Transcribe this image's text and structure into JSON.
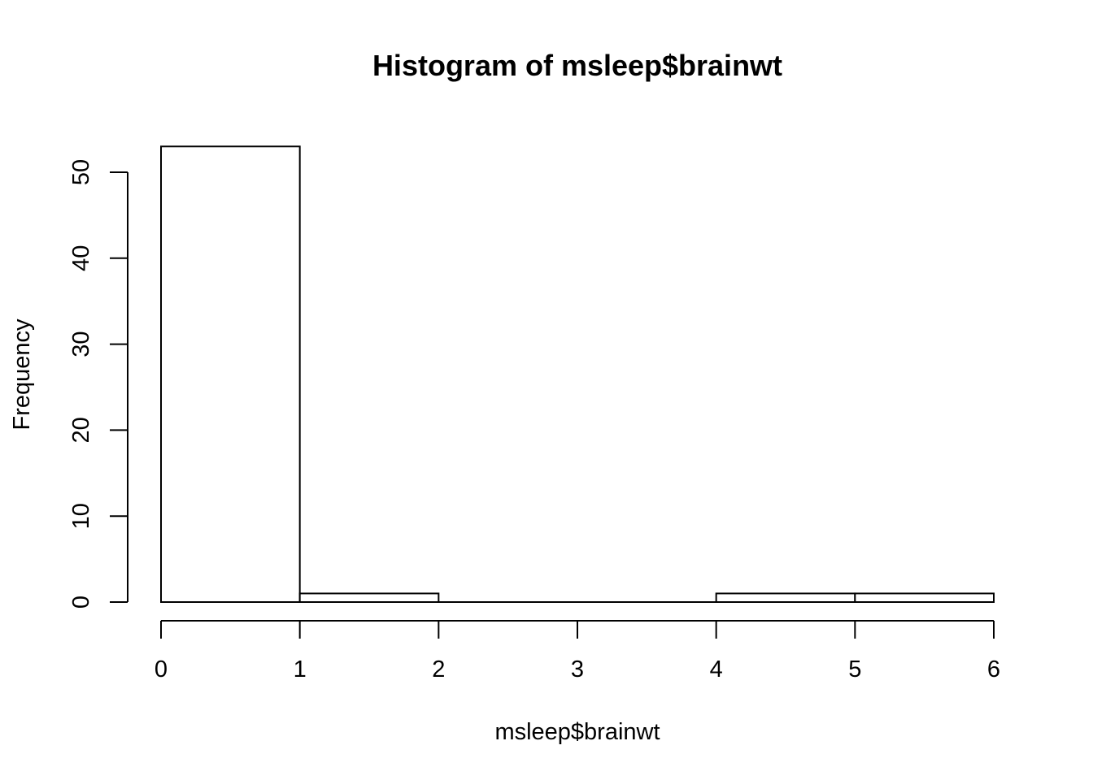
{
  "chart_data": {
    "type": "bar",
    "title": "Histogram of msleep$brainwt",
    "xlabel": "msleep$brainwt",
    "ylabel": "Frequency",
    "bins": [
      {
        "start": 0,
        "end": 1,
        "count": 53
      },
      {
        "start": 1,
        "end": 2,
        "count": 1
      },
      {
        "start": 2,
        "end": 3,
        "count": 0
      },
      {
        "start": 3,
        "end": 4,
        "count": 0
      },
      {
        "start": 4,
        "end": 5,
        "count": 1
      },
      {
        "start": 5,
        "end": 6,
        "count": 1
      }
    ],
    "x_ticks": [
      "0",
      "1",
      "2",
      "3",
      "4",
      "5",
      "6"
    ],
    "y_ticks": [
      "0",
      "10",
      "20",
      "30",
      "40",
      "50"
    ],
    "xlim": [
      0,
      6
    ],
    "ylim": [
      0,
      53
    ],
    "grid": false,
    "legend": "none"
  }
}
